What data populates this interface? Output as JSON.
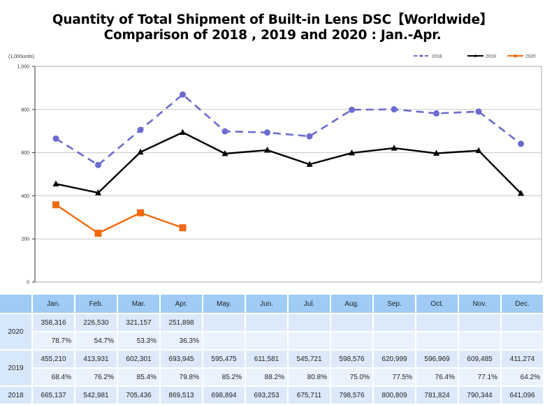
{
  "title": {
    "line1": "Quantity of Total Shipment of Built-in Lens DSC【Worldwide】",
    "line2": "Comparison of 2018 , 2019 and 2020 : Jan.-Apr."
  },
  "chart_data": {
    "type": "line",
    "title": "Quantity of Total Shipment of Built-in Lens DSC【Worldwide】 Comparison of 2018 , 2019 and 2020 : Jan.-Apr.",
    "ylabel": "(1,000units)",
    "xlabel": "",
    "ylim": [
      0,
      1000
    ],
    "yticks": [
      0,
      200,
      400,
      600,
      800,
      1000
    ],
    "ytick_labels": [
      "0",
      "200",
      "400",
      "600",
      "800",
      "1,000"
    ],
    "grid": true,
    "legend_position": "top-right",
    "categories": [
      "Jan.",
      "Feb.",
      "Mar.",
      "Apr.",
      "May.",
      "Jun.",
      "Jul.",
      "Aug.",
      "Sep.",
      "Oct.",
      "Nov.",
      "Dec."
    ],
    "series": [
      {
        "name": "2018",
        "color": "#6b6bd0",
        "style": "dashed",
        "marker": "circle",
        "values": [
          665.137,
          542.981,
          705.436,
          869.513,
          698.894,
          693.253,
          675.711,
          798.576,
          800.809,
          781.824,
          790.344,
          641.096
        ]
      },
      {
        "name": "2019",
        "color": "#000000",
        "style": "solid",
        "marker": "triangle",
        "values": [
          455.21,
          413.931,
          602.301,
          693.945,
          595.475,
          611.581,
          545.721,
          598.576,
          620.999,
          596.969,
          609.485,
          411.274
        ]
      },
      {
        "name": "2020",
        "color": "#f26a10",
        "style": "solid",
        "marker": "square",
        "values": [
          358.316,
          226.53,
          321.157,
          251.898,
          null,
          null,
          null,
          null,
          null,
          null,
          null,
          null
        ]
      }
    ]
  },
  "table": {
    "months": [
      "Jan.",
      "Feb.",
      "Mar.",
      "Apr.",
      "May.",
      "Jun.",
      "Jul.",
      "Aug.",
      "Sep.",
      "Oct.",
      "Nov.",
      "Dec."
    ],
    "rows": {
      "y2020": {
        "label": "2020",
        "values": [
          "358,316",
          "226,530",
          "321,157",
          "251,898",
          "",
          "",
          "",
          "",
          "",
          "",
          "",
          ""
        ],
        "ratios": [
          "78.7%",
          "54.7%",
          "53.3%",
          "36.3%",
          "",
          "",
          "",
          "",
          "",
          "",
          "",
          ""
        ]
      },
      "y2019": {
        "label": "2019",
        "values": [
          "455,210",
          "413,931",
          "602,301",
          "693,945",
          "595,475",
          "611,581",
          "545,721",
          "598,576",
          "620,999",
          "596,969",
          "609,485",
          "411,274"
        ],
        "ratios": [
          "68.4%",
          "76.2%",
          "85.4%",
          "79.8%",
          "85.2%",
          "88.2%",
          "80.8%",
          "75.0%",
          "77.5%",
          "76.4%",
          "77.1%",
          "64.2%"
        ]
      },
      "y2018": {
        "label": "2018",
        "values": [
          "665,137",
          "542,981",
          "705,436",
          "869,513",
          "698,894",
          "693,253",
          "675,711",
          "798,576",
          "800,809",
          "781,824",
          "790,344",
          "641,096"
        ]
      }
    }
  }
}
